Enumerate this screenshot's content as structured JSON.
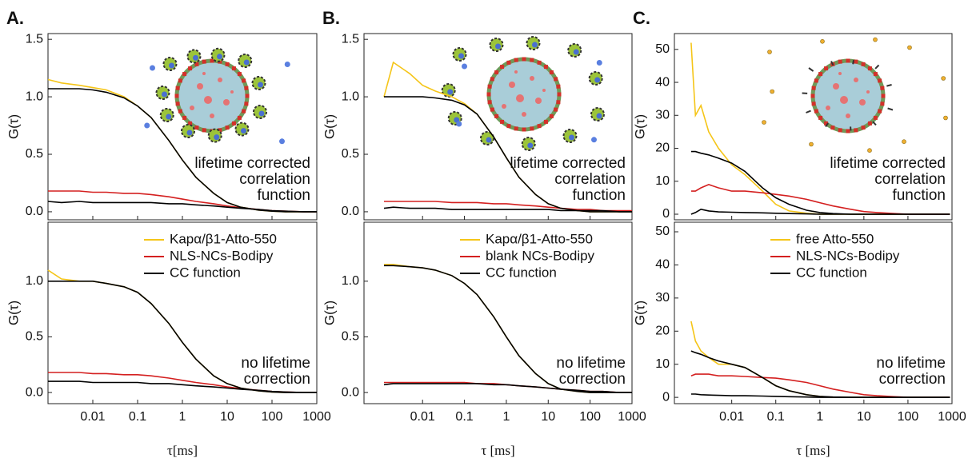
{
  "chart_data": [
    {
      "type": "line",
      "panel_label": "A.",
      "ylabel": "G(τ)",
      "annotation": [
        "lifetime corrected",
        "correlation",
        "function"
      ],
      "xscale": "log",
      "xlim": [
        0.001,
        1000
      ],
      "xticks": [
        0.01,
        0.1,
        1,
        10,
        100,
        1000
      ],
      "xtick_labels": false,
      "ylim": [
        -0.07,
        1.55
      ],
      "yticks": [
        {
          "value": 0,
          "label": "0.0"
        },
        {
          "value": 0.5,
          "label": "0.5"
        },
        {
          "value": 1,
          "label": "1.0"
        },
        {
          "value": 1.5,
          "label": "1.5"
        }
      ],
      "x": [
        0.001,
        0.002,
        0.005,
        0.01,
        0.02,
        0.05,
        0.1,
        0.2,
        0.5,
        1,
        2,
        5,
        10,
        20,
        50,
        100,
        200,
        500,
        1000
      ],
      "series": [
        {
          "color": "#f5c518",
          "values": [
            1.15,
            1.12,
            1.1,
            1.08,
            1.06,
            1.0,
            0.92,
            0.82,
            0.62,
            0.45,
            0.3,
            0.16,
            0.08,
            0.04,
            0.015,
            0.005,
            0,
            0,
            0
          ]
        },
        {
          "color": "#d42020",
          "values": [
            0.18,
            0.18,
            0.18,
            0.17,
            0.17,
            0.16,
            0.16,
            0.15,
            0.13,
            0.11,
            0.09,
            0.07,
            0.05,
            0.035,
            0.02,
            0.01,
            0.005,
            0,
            0
          ]
        },
        {
          "color": "#000000",
          "values": [
            0.09,
            0.08,
            0.09,
            0.08,
            0.08,
            0.08,
            0.08,
            0.08,
            0.07,
            0.07,
            0.06,
            0.05,
            0.04,
            0.03,
            0.02,
            0.01,
            0.005,
            0,
            0
          ]
        },
        {
          "color": "#000000",
          "values": [
            1.07,
            1.07,
            1.07,
            1.06,
            1.04,
            0.99,
            0.92,
            0.82,
            0.62,
            0.45,
            0.3,
            0.16,
            0.08,
            0.04,
            0.015,
            0.005,
            0,
            0,
            0
          ]
        }
      ]
    },
    {
      "type": "line",
      "ylabel": "G(τ)",
      "xlabel": "τ[ms]",
      "annotation": [
        "no lifetime",
        "correction"
      ],
      "xscale": "log",
      "xlim": [
        0.001,
        1000
      ],
      "xticks": [
        0.01,
        0.1,
        1,
        10,
        100,
        1000
      ],
      "xtick_labels": true,
      "ylim": [
        -0.1,
        1.53
      ],
      "yticks": [
        {
          "value": 0,
          "label": "0.0"
        },
        {
          "value": 0.5,
          "label": "0.5"
        },
        {
          "value": 1,
          "label": "1.0"
        }
      ],
      "x": [
        0.001,
        0.002,
        0.005,
        0.01,
        0.02,
        0.05,
        0.1,
        0.2,
        0.5,
        1,
        2,
        5,
        10,
        20,
        50,
        100,
        200,
        500,
        1000
      ],
      "series": [
        {
          "name": "Kapα/β1-Atto-550",
          "color": "#f5c518",
          "values": [
            1.1,
            1.02,
            1.0,
            1.0,
            0.98,
            0.95,
            0.9,
            0.8,
            0.62,
            0.45,
            0.3,
            0.15,
            0.08,
            0.04,
            0.015,
            0.005,
            0,
            0,
            0
          ]
        },
        {
          "name": "NLS-NCs-Bodipy",
          "color": "#d42020",
          "values": [
            0.18,
            0.18,
            0.18,
            0.17,
            0.17,
            0.16,
            0.16,
            0.15,
            0.13,
            0.11,
            0.09,
            0.07,
            0.05,
            0.035,
            0.02,
            0.01,
            0.005,
            0,
            0
          ]
        },
        {
          "name": "CC function",
          "color": "#000000",
          "values": [
            0.1,
            0.1,
            0.1,
            0.09,
            0.09,
            0.09,
            0.09,
            0.08,
            0.08,
            0.07,
            0.06,
            0.05,
            0.04,
            0.03,
            0.02,
            0.01,
            0.005,
            0,
            0
          ]
        },
        {
          "color": "#000000",
          "values": [
            1.0,
            1.0,
            1.0,
            1.0,
            0.98,
            0.95,
            0.9,
            0.8,
            0.62,
            0.45,
            0.3,
            0.15,
            0.08,
            0.04,
            0.015,
            0.005,
            0,
            0,
            0
          ]
        }
      ]
    },
    {
      "type": "line",
      "panel_label": "B.",
      "ylabel": "G(τ)",
      "annotation": [
        "lifetime corrected",
        "correlation",
        "function"
      ],
      "xscale": "log",
      "xlim": [
        0.0004,
        1000
      ],
      "xticks": [
        0.01,
        0.1,
        1,
        10,
        100,
        1000
      ],
      "xtick_labels": false,
      "ylim": [
        -0.07,
        1.55
      ],
      "yticks": [
        {
          "value": 0,
          "label": "0.0"
        },
        {
          "value": 0.5,
          "label": "0.5"
        },
        {
          "value": 1,
          "label": "1.0"
        },
        {
          "value": 1.5,
          "label": "1.5"
        }
      ],
      "x": [
        0.0012,
        0.002,
        0.005,
        0.01,
        0.02,
        0.05,
        0.1,
        0.2,
        0.5,
        1,
        2,
        5,
        10,
        20,
        50,
        100,
        200,
        500,
        1000
      ],
      "series": [
        {
          "color": "#f5c518",
          "values": [
            1.0,
            1.3,
            1.2,
            1.1,
            1.05,
            1.0,
            0.94,
            0.85,
            0.65,
            0.47,
            0.3,
            0.15,
            0.07,
            0.03,
            0.01,
            0,
            0,
            0,
            0
          ]
        },
        {
          "color": "#d42020",
          "values": [
            0.09,
            0.09,
            0.09,
            0.09,
            0.09,
            0.08,
            0.08,
            0.08,
            0.07,
            0.07,
            0.06,
            0.05,
            0.04,
            0.03,
            0.02,
            0.02,
            0.01,
            0.01,
            0.01
          ]
        },
        {
          "color": "#000000",
          "values": [
            0.03,
            0.04,
            0.03,
            0.03,
            0.03,
            0.02,
            0.02,
            0.02,
            0.02,
            0.02,
            0.02,
            0.02,
            0.02,
            0.01,
            0.01,
            0.01,
            0.01,
            0,
            0
          ]
        },
        {
          "color": "#000000",
          "values": [
            1.0,
            1.0,
            1.0,
            1.0,
            0.99,
            0.97,
            0.93,
            0.85,
            0.65,
            0.47,
            0.3,
            0.15,
            0.07,
            0.03,
            0.01,
            0,
            0,
            0,
            0
          ]
        }
      ]
    },
    {
      "type": "line",
      "ylabel": "G(τ)",
      "xlabel": "τ [ms]",
      "annotation": [
        "no lifetime",
        "correction"
      ],
      "xscale": "log",
      "xlim": [
        0.0004,
        1000
      ],
      "xticks": [
        0.01,
        0.1,
        1,
        10,
        100,
        1000
      ],
      "xtick_labels": true,
      "ylim": [
        -0.1,
        1.53
      ],
      "yticks": [
        {
          "value": 0,
          "label": "0.0"
        },
        {
          "value": 0.5,
          "label": "0.5"
        },
        {
          "value": 1,
          "label": "1.0"
        }
      ],
      "x": [
        0.0012,
        0.002,
        0.005,
        0.01,
        0.02,
        0.05,
        0.1,
        0.2,
        0.5,
        1,
        2,
        5,
        10,
        20,
        50,
        100,
        200,
        500,
        1000
      ],
      "series": [
        {
          "name": "Kapα/β1-Atto-550",
          "color": "#f5c518",
          "values": [
            1.15,
            1.15,
            1.13,
            1.12,
            1.1,
            1.05,
            0.98,
            0.88,
            0.68,
            0.5,
            0.33,
            0.17,
            0.08,
            0.03,
            0.01,
            0,
            0,
            0,
            0
          ]
        },
        {
          "name": "blank NCs-Bodipy",
          "color": "#d42020",
          "values": [
            0.09,
            0.09,
            0.09,
            0.09,
            0.09,
            0.09,
            0.09,
            0.08,
            0.08,
            0.07,
            0.06,
            0.05,
            0.04,
            0.03,
            0.02,
            0.01,
            0.01,
            0,
            0
          ]
        },
        {
          "name": "CC function",
          "color": "#000000",
          "values": [
            0.07,
            0.08,
            0.08,
            0.08,
            0.08,
            0.08,
            0.08,
            0.08,
            0.07,
            0.07,
            0.06,
            0.05,
            0.04,
            0.03,
            0.02,
            0.01,
            0.01,
            0,
            0
          ]
        },
        {
          "color": "#000000",
          "values": [
            1.14,
            1.14,
            1.13,
            1.12,
            1.1,
            1.05,
            0.98,
            0.88,
            0.68,
            0.5,
            0.33,
            0.17,
            0.08,
            0.03,
            0.01,
            0,
            0,
            0,
            0
          ]
        }
      ]
    },
    {
      "type": "line",
      "panel_label": "C.",
      "ylabel": "G(τ)",
      "annotation": [
        "lifetime corrected",
        "correlation",
        "function"
      ],
      "xscale": "log",
      "xlim": [
        0.0005,
        1000
      ],
      "xticks": [
        0.01,
        0.1,
        1,
        10,
        100,
        1000
      ],
      "xtick_labels": false,
      "ylim": [
        -1.7,
        54.8
      ],
      "yticks": [
        0,
        10,
        20,
        30,
        40,
        50
      ],
      "x": [
        0.0012,
        0.0015,
        0.002,
        0.003,
        0.005,
        0.01,
        0.02,
        0.05,
        0.1,
        0.2,
        0.5,
        1,
        2,
        5,
        10,
        20,
        50,
        100,
        200,
        500,
        900
      ],
      "series": [
        {
          "color": "#f5c518",
          "values": [
            52,
            30,
            33,
            25,
            20,
            15,
            12,
            7,
            3,
            1,
            0.3,
            0,
            0,
            0,
            0,
            0,
            0,
            0,
            0,
            0,
            0
          ]
        },
        {
          "color": "#d42020",
          "values": [
            7,
            7,
            8,
            9,
            8,
            7,
            7,
            6.5,
            6,
            5.5,
            4.5,
            3.5,
            2.5,
            1.5,
            0.8,
            0.5,
            0.2,
            0,
            0,
            0,
            0
          ]
        },
        {
          "color": "#000000",
          "values": [
            0,
            0.5,
            1.5,
            1,
            0.7,
            0.6,
            0.5,
            0.4,
            0.3,
            0.2,
            0.1,
            0,
            0,
            0,
            0,
            0,
            0,
            0,
            0,
            0,
            0
          ]
        },
        {
          "color": "#000000",
          "values": [
            19,
            19,
            18.5,
            18,
            17,
            15.5,
            13,
            8,
            5,
            3,
            1.2,
            0.5,
            0.2,
            0,
            0,
            0,
            0,
            0,
            0,
            0,
            0
          ]
        }
      ]
    },
    {
      "type": "line",
      "ylabel": "G(τ)",
      "xlabel": "τ [ms]",
      "annotation": [
        "no lifetime",
        "correction"
      ],
      "xscale": "log",
      "xlim": [
        0.0005,
        1000
      ],
      "xticks": [
        0.01,
        0.1,
        1,
        10,
        100,
        1000
      ],
      "xtick_labels": true,
      "ylim": [
        -1.9,
        52.9
      ],
      "yticks": [
        0,
        10,
        20,
        30,
        40,
        50
      ],
      "x": [
        0.0012,
        0.0015,
        0.002,
        0.003,
        0.005,
        0.01,
        0.02,
        0.05,
        0.1,
        0.2,
        0.5,
        1,
        2,
        5,
        10,
        20,
        50,
        100,
        200,
        500,
        900
      ],
      "series": [
        {
          "name": "free Atto-550",
          "color": "#f5c518",
          "values": [
            23,
            17,
            14,
            12,
            10,
            10,
            9,
            6,
            3.5,
            2,
            0.8,
            0.3,
            0,
            0,
            0,
            0,
            0,
            0,
            0,
            0,
            0
          ]
        },
        {
          "name": "NLS-NCs-Bodipy",
          "color": "#d42020",
          "values": [
            6.5,
            7,
            7,
            7,
            6.5,
            6.5,
            6.3,
            6,
            5.8,
            5.3,
            4.5,
            3.5,
            2.5,
            1.5,
            0.8,
            0.5,
            0.2,
            0,
            0,
            0,
            0
          ]
        },
        {
          "name": "CC function",
          "color": "#000000",
          "values": [
            1,
            1,
            0.8,
            0.7,
            0.6,
            0.5,
            0.5,
            0.4,
            0.3,
            0.2,
            0.1,
            0,
            0,
            0,
            0,
            0,
            0,
            0,
            0,
            0,
            0
          ]
        },
        {
          "color": "#000000",
          "values": [
            14,
            13.5,
            13,
            12,
            11,
            10,
            9,
            6,
            3.5,
            2,
            0.8,
            0.3,
            0.1,
            0,
            0,
            0,
            0,
            0,
            0,
            0,
            0
          ]
        }
      ]
    }
  ]
}
